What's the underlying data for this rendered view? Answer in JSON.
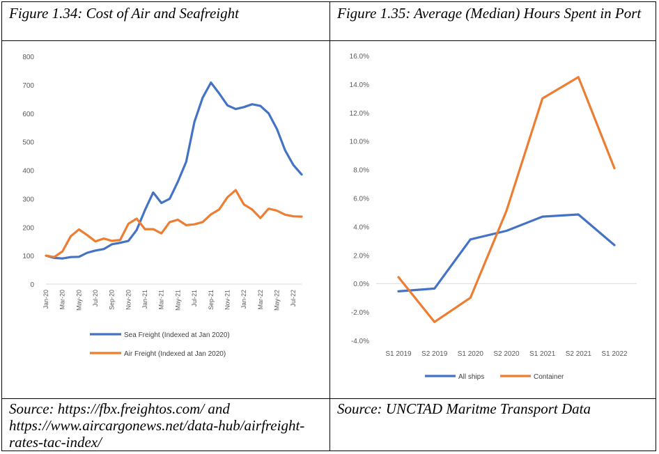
{
  "captions": {
    "left": "Figure 1.34: Cost of Air and Seafreight",
    "right": "Figure 1.35: Average (Median) Hours Spent in Port"
  },
  "sources": {
    "left": "Source: https://fbx.freightos.com/ and https://www.aircargonews.net/data-hub/airfreight-rates-tac-index/",
    "right": "Source: UNCTAD Maritme Transport Data"
  },
  "chart_data": [
    {
      "type": "line",
      "title": "",
      "xlabel": "",
      "ylabel": "",
      "ylim": [
        0,
        800
      ],
      "yticks": [
        "0",
        "100",
        "200",
        "300",
        "400",
        "500",
        "600",
        "700",
        "800"
      ],
      "x": [
        "Jan-20",
        "Feb-20",
        "Mar-20",
        "Apr-20",
        "May-20",
        "Jun-20",
        "Jul-20",
        "Aug-20",
        "Sep-20",
        "Oct-20",
        "Nov-20",
        "Dec-20",
        "Jan-21",
        "Feb-21",
        "Mar-21",
        "Apr-21",
        "May-21",
        "Jun-21",
        "Jul-21",
        "Aug-21",
        "Sep-21",
        "Oct-21",
        "Nov-21",
        "Dec-21",
        "Jan-22",
        "Feb-22",
        "Mar-22",
        "Apr-22",
        "May-22",
        "Jun-22",
        "Jul-22",
        "Aug-22"
      ],
      "xtick_labels": [
        "Jan-20",
        "Mar-20",
        "May-20",
        "Jul-20",
        "Sep-20",
        "Nov-20",
        "Jan-21",
        "Mar-21",
        "May-21",
        "Jul-21",
        "Sep-21",
        "Nov-21",
        "Jan-22",
        "Mar-22",
        "May-22",
        "Jul-22"
      ],
      "legend_position": "bottom",
      "grid": false,
      "series": [
        {
          "name": "Sea Freight (Indexed at Jan 2020)",
          "color": "#4472C4",
          "values": [
            100,
            92,
            90,
            95,
            96,
            110,
            118,
            123,
            140,
            145,
            152,
            190,
            260,
            322,
            285,
            300,
            360,
            430,
            570,
            655,
            708,
            670,
            628,
            615,
            622,
            632,
            626,
            600,
            545,
            470,
            418,
            385
          ]
        },
        {
          "name": "Air Freight (Indexed at Jan 2020)",
          "color": "#ED7D31",
          "values": [
            100,
            95,
            115,
            168,
            192,
            172,
            150,
            160,
            152,
            155,
            212,
            230,
            193,
            193,
            178,
            218,
            226,
            207,
            210,
            218,
            245,
            262,
            305,
            330,
            280,
            262,
            232,
            265,
            258,
            244,
            238,
            237
          ]
        }
      ]
    },
    {
      "type": "line",
      "title": "",
      "xlabel": "",
      "ylabel": "",
      "ylim": [
        -4,
        16
      ],
      "yticks": [
        "-4.0%",
        "-2.0%",
        "0.0%",
        "2.0%",
        "4.0%",
        "6.0%",
        "8.0%",
        "10.0%",
        "12.0%",
        "14.0%",
        "16.0%"
      ],
      "x": [
        "S1 2019",
        "S2 2019",
        "S1 2020",
        "S2 2020",
        "S1 2021",
        "S2 2021",
        "S1 2022"
      ],
      "xtick_labels": [
        "S1 2019",
        "S2 2019",
        "S1 2020",
        "S2 2020",
        "S1 2021",
        "S2  2021",
        "S1  2022"
      ],
      "unit": "%",
      "legend_position": "bottom",
      "grid": false,
      "series": [
        {
          "name": "All ships",
          "color": "#4472C4",
          "values": [
            -0.55,
            -0.35,
            3.1,
            3.7,
            4.7,
            4.85,
            2.7
          ]
        },
        {
          "name": "Container",
          "color": "#ED7D31",
          "values": [
            0.45,
            -2.7,
            -1.0,
            5.1,
            13.0,
            14.5,
            8.1
          ]
        }
      ]
    }
  ]
}
